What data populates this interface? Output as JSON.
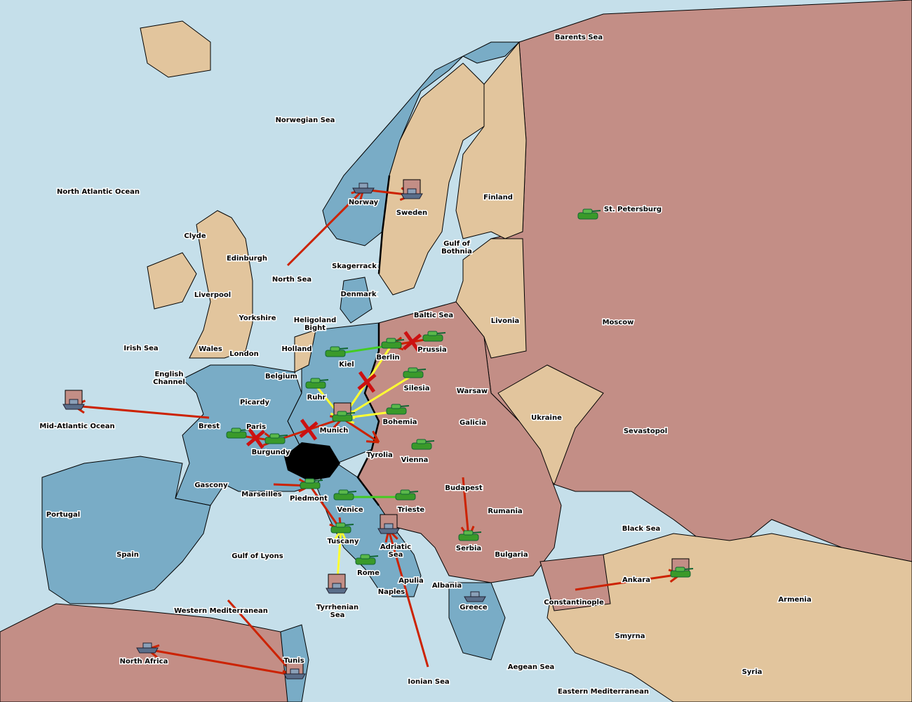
{
  "colors": {
    "sea": "#c5dfea",
    "power_blue": "#79acc6",
    "power_red": "#c38e86",
    "neutral": "#e2c59d",
    "move": "#cc2200",
    "support": "#ffff33",
    "hold": "#44cc22",
    "army": "#3a9a2a",
    "fleet": "#5a6e8a"
  },
  "labels": [
    "Barents Sea",
    "Norwegian Sea",
    "North Atlantic Ocean",
    "Norway",
    "Sweden",
    "Finland",
    "St. Petersburg",
    "Gulf of Bothnia",
    "Clyde",
    "Edinburgh",
    "Skagerrack",
    "North Sea",
    "Liverpool",
    "Denmark",
    "Yorkshire",
    "Baltic Sea",
    "Livonia",
    "Moscow",
    "Heligoland Bight",
    "Irish Sea",
    "Wales",
    "London",
    "Holland",
    "Prussia",
    "Kiel",
    "Berlin",
    "English Channel",
    "Belgium",
    "Warsaw",
    "Silesia",
    "Ruhr",
    "Picardy",
    "Ukraine",
    "Bohemia",
    "Munich",
    "Galicia",
    "Brest",
    "Paris",
    "Mid-Atlantic Ocean",
    "Sevastopol",
    "Burgundy",
    "Tyrolia",
    "Vienna",
    "Gascony",
    "Budapest",
    "Marseilles",
    "Piedmont",
    "Venice",
    "Trieste",
    "Rumania",
    "Portugal",
    "Black Sea",
    "Tuscany",
    "Adriatic Sea",
    "Serbia",
    "Bulgaria",
    "Spain",
    "Gulf of Lyons",
    "Rome",
    "Apulia",
    "Ankara",
    "Albania",
    "Naples",
    "Armenia",
    "Constantinople",
    "Tyrrhenian Sea",
    "Western Mediterranean",
    "Greece",
    "Smyrna",
    "Tunis",
    "North Africa",
    "Aegean Sea",
    "Syria",
    "Ionian Sea",
    "Eastern Mediterranean"
  ],
  "units": [
    {
      "type": "fleet",
      "province": "Norway"
    },
    {
      "type": "fleet",
      "province": "Sweden",
      "boxed": true
    },
    {
      "type": "army",
      "province": "St. Petersburg"
    },
    {
      "type": "army",
      "province": "Prussia"
    },
    {
      "type": "army",
      "province": "Berlin"
    },
    {
      "type": "army",
      "province": "Kiel"
    },
    {
      "type": "army",
      "province": "Silesia"
    },
    {
      "type": "army",
      "province": "Ruhr"
    },
    {
      "type": "army",
      "province": "Bohemia"
    },
    {
      "type": "army",
      "province": "Munich",
      "boxed": true
    },
    {
      "type": "army",
      "province": "Burgundy"
    },
    {
      "type": "army",
      "province": "Paris"
    },
    {
      "type": "army",
      "province": "Vienna"
    },
    {
      "type": "army",
      "province": "Piedmont"
    },
    {
      "type": "army",
      "province": "Venice"
    },
    {
      "type": "army",
      "province": "Trieste"
    },
    {
      "type": "army",
      "province": "Tuscany"
    },
    {
      "type": "fleet",
      "province": "Adriatic Sea",
      "boxed": true
    },
    {
      "type": "army",
      "province": "Rome"
    },
    {
      "type": "fleet",
      "province": "Tyrrhenian Sea",
      "boxed": true
    },
    {
      "type": "army",
      "province": "Serbia"
    },
    {
      "type": "fleet",
      "province": "Greece"
    },
    {
      "type": "army",
      "province": "Ankara",
      "boxed": true
    },
    {
      "type": "fleet",
      "province": "North Africa"
    },
    {
      "type": "fleet",
      "province": "Tunis",
      "boxed": true
    },
    {
      "type": "fleet",
      "province": "Mid-Atlantic Ocean",
      "boxed": true
    }
  ],
  "orders": [
    {
      "from": "North Sea",
      "to": "Norway",
      "kind": "move"
    },
    {
      "from": "Norway",
      "to": "Sweden",
      "kind": "move"
    },
    {
      "from": "Brest",
      "to": "Mid-Atlantic Ocean",
      "kind": "move"
    },
    {
      "from": "Prussia",
      "to": "Berlin",
      "kind": "move",
      "failed": true
    },
    {
      "from": "Paris",
      "to": "Burgundy",
      "kind": "move",
      "failed": true
    },
    {
      "from": "Burgundy",
      "to": "Munich",
      "kind": "move",
      "failed": true
    },
    {
      "from": "Munich",
      "to": "Tyrolia",
      "kind": "move"
    },
    {
      "from": "Marseilles",
      "to": "Piedmont",
      "kind": "move"
    },
    {
      "from": "Piedmont",
      "to": "Tuscany",
      "kind": "move"
    },
    {
      "from": "Budapest",
      "to": "Serbia",
      "kind": "move"
    },
    {
      "from": "Tunis",
      "to": "North Africa",
      "kind": "move"
    },
    {
      "from": "Western Mediterranean",
      "to": "Tunis",
      "kind": "move"
    },
    {
      "from": "Ionian Sea",
      "to": "Adriatic Sea",
      "kind": "move"
    },
    {
      "from": "Constantinople",
      "to": "Ankara",
      "kind": "move"
    },
    {
      "from": "Berlin",
      "to": "Munich",
      "kind": "support",
      "failed": true
    },
    {
      "from": "Silesia",
      "to": "Munich",
      "kind": "support"
    },
    {
      "from": "Ruhr",
      "to": "Munich",
      "kind": "support"
    },
    {
      "from": "Bohemia",
      "to": "Munich",
      "kind": "support"
    },
    {
      "from": "Tyrrhenian Sea",
      "to": "Tuscany",
      "kind": "support"
    },
    {
      "from": "Kiel",
      "to": "Berlin",
      "kind": "hold"
    },
    {
      "from": "Trieste",
      "to": "Venice",
      "kind": "hold"
    }
  ]
}
